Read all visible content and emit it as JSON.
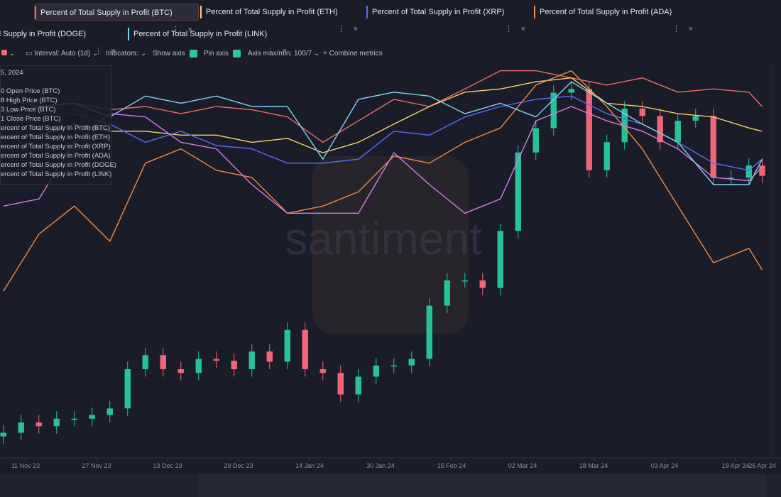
{
  "tabs": [
    "Percent of Total Supply in Profit (BTC)",
    "Percent of Total Supply in Profit (ETH)",
    "Percent of Total Supply in Profit (XRP)",
    "Percent of Total Supply in Profit (ADA)",
    "Total Supply in Profit (DOGE)",
    "Percent of Total Supply in Profit (LINK)"
  ],
  "toolbar": {
    "interval": "Interval: Auto (1d)",
    "indicators": "Indicators:",
    "show_axis": "Show axis",
    "pin_axis": "Pin axis",
    "axis_range": "Axis max/min: 100/7",
    "combine": "Combine metrics"
  },
  "legend": {
    "date": "5, 2024",
    "items": [
      "0 Open Price (BTC)",
      "8 High Price (BTC)",
      "3 Low Price (BTC)",
      "1 Close Price (BTC)",
      "ercent of Total Supply in Profit (BTC)",
      "ercent of Total Supply in Profit (ETH)",
      "ercent of Total Supply in Profit (XRP)",
      "ercent of Total Supply in Profit (ADA)",
      "ercent of Total Supply in Profit (DOGE)",
      "ercent of Total Supply in Profit (LINK)"
    ]
  },
  "watermark": "santiment",
  "chart_data": {
    "type": "candlestick",
    "xlim": [
      -5.76,
      166.4
    ],
    "xticks": [
      {
        "value": 0,
        "label": "11 Nov 23"
      },
      {
        "value": 16,
        "label": "27 Nov 23"
      },
      {
        "value": 32,
        "label": "13 Dec 23"
      },
      {
        "value": 48,
        "label": "29 Dec 23"
      },
      {
        "value": 64,
        "label": "14 Jan 24"
      },
      {
        "value": 80,
        "label": "30 Jan 24"
      },
      {
        "value": 96,
        "label": "15 Feb 24"
      },
      {
        "value": 112,
        "label": "02 Mar 24"
      },
      {
        "value": 128,
        "label": "18 Mar 24"
      },
      {
        "value": 144,
        "label": "03 Apr 24"
      },
      {
        "value": 160,
        "label": "19 Apr 24"
      },
      {
        "value": 166,
        "label": "25 Apr 24"
      }
    ],
    "ylim": [
      32700,
      74500
    ],
    "y2lim": [
      40,
      100
    ],
    "candles": {
      "up_color": "#26c29a",
      "down_color": "#f0657a",
      "x": [
        -5,
        -1,
        3,
        7,
        11,
        15,
        19,
        23,
        27,
        31,
        35,
        39,
        43,
        47,
        51,
        55,
        59,
        63,
        67,
        71,
        75,
        79,
        83,
        87,
        91,
        95,
        99,
        103,
        107,
        111,
        115,
        119,
        123,
        127,
        131,
        135,
        139,
        143,
        147,
        151,
        155,
        159,
        163,
        166
      ],
      "open": [
        35000,
        35400,
        36500,
        36100,
        36900,
        36900,
        37300,
        38000,
        42200,
        43700,
        42200,
        41800,
        43300,
        43100,
        42200,
        44100,
        43000,
        46400,
        42200,
        41800,
        39500,
        41400,
        42600,
        42600,
        43300,
        49000,
        51700,
        51700,
        50900,
        57000,
        65400,
        68000,
        71800,
        72200,
        63500,
        66500,
        70100,
        69300,
        66500,
        68800,
        69300,
        62700,
        62700,
        64000
      ],
      "high": [
        36200,
        37300,
        37300,
        37700,
        37700,
        38100,
        38800,
        43000,
        44500,
        44500,
        43000,
        44100,
        44100,
        43900,
        44900,
        44900,
        47200,
        47200,
        43000,
        42600,
        42200,
        43400,
        43400,
        44100,
        49800,
        52500,
        52500,
        52500,
        57800,
        66200,
        68800,
        72600,
        73000,
        73000,
        67300,
        70900,
        70900,
        70100,
        69600,
        70100,
        70100,
        63500,
        64800,
        64800
      ],
      "low": [
        34200,
        34600,
        35300,
        35300,
        36100,
        36100,
        36500,
        37200,
        41400,
        41400,
        41000,
        41000,
        42300,
        41400,
        41400,
        42200,
        42200,
        41400,
        41000,
        38700,
        38700,
        40600,
        41800,
        41800,
        42500,
        48200,
        50900,
        50100,
        50100,
        56200,
        64600,
        67200,
        71000,
        62700,
        62700,
        65700,
        68500,
        65700,
        65700,
        68000,
        61900,
        61900,
        61900,
        62100
      ],
      "close": [
        35400,
        36500,
        36100,
        36900,
        36900,
        37300,
        38000,
        42200,
        43700,
        42200,
        41800,
        43300,
        43100,
        42200,
        44100,
        43000,
        46400,
        42200,
        41800,
        39500,
        41400,
        42600,
        42600,
        43300,
        49000,
        51700,
        51700,
        50900,
        57000,
        65400,
        68000,
        71800,
        72200,
        63500,
        66500,
        70100,
        69300,
        66500,
        68800,
        69300,
        62700,
        62700,
        64000,
        62900
      ]
    },
    "x": [
      -5,
      3,
      11,
      19,
      27,
      35,
      43,
      51,
      59,
      67,
      75,
      83,
      91,
      99,
      107,
      115,
      123,
      131,
      139,
      147,
      155,
      163,
      166
    ],
    "series": [
      {
        "name": "Percent of Total Supply in Profit (BTC)",
        "color": "#ee6b6b",
        "axis": "y2",
        "values": [
          92.9,
          94.0,
          94.5,
          93.5,
          94.0,
          92.9,
          94.0,
          93.5,
          92.4,
          88.5,
          91.8,
          95.1,
          94.0,
          96.7,
          99.5,
          99.5,
          98.4,
          97.3,
          98.4,
          96.2,
          96.7,
          96.2,
          94.0
        ]
      },
      {
        "name": "Percent of Total Supply in Profit (ETH)",
        "color": "#f5d36a",
        "axis": "y2",
        "values": [
          89.1,
          89.6,
          91.3,
          90.2,
          90.2,
          89.6,
          89.6,
          88.5,
          89.1,
          86.9,
          88.5,
          91.3,
          94.0,
          96.2,
          96.7,
          97.8,
          98.4,
          94.5,
          94.0,
          92.9,
          92.4,
          90.7,
          90.2
        ]
      },
      {
        "name": "Percent of Total Supply in Profit (XRP)",
        "color": "#5b6ef0",
        "axis": "y2",
        "values": [
          92.4,
          92.9,
          92.9,
          91.3,
          88.5,
          90.2,
          88.0,
          87.5,
          85.3,
          85.3,
          85.9,
          90.2,
          89.6,
          92.4,
          94.0,
          95.1,
          95.6,
          92.9,
          91.3,
          88.5,
          85.3,
          84.2,
          85.9
        ]
      },
      {
        "name": "Percent of Total Supply in Profit (ADA)",
        "color": "#f08a48",
        "axis": "y2",
        "values": [
          65.6,
          74.4,
          78.7,
          73.3,
          85.3,
          87.5,
          84.2,
          83.1,
          77.6,
          78.7,
          80.9,
          86.4,
          85.3,
          88.5,
          90.7,
          97.3,
          99.5,
          94.0,
          87.5,
          78.7,
          70.0,
          72.2,
          68.9
        ]
      },
      {
        "name": "Percent of Total Supply in Profit (DOGE)",
        "color": "#d67ce6",
        "axis": "y2",
        "values": [
          78.7,
          79.8,
          88.5,
          92.9,
          92.4,
          88.5,
          87.5,
          82.0,
          77.6,
          77.6,
          77.6,
          86.9,
          82.0,
          77.6,
          79.8,
          91.8,
          94.0,
          91.8,
          90.2,
          87.5,
          83.1,
          82.6,
          84.7
        ]
      },
      {
        "name": "Percent of Total Supply in Profit (LINK)",
        "color": "#80d4f2",
        "axis": "y2",
        "values": [
          95.1,
          94.0,
          94.5,
          92.4,
          95.6,
          94.5,
          95.6,
          94.0,
          94.0,
          85.9,
          95.1,
          96.2,
          95.6,
          92.9,
          94.5,
          92.4,
          97.8,
          94.5,
          91.3,
          88.5,
          82.0,
          82.0,
          85.9
        ]
      }
    ]
  }
}
